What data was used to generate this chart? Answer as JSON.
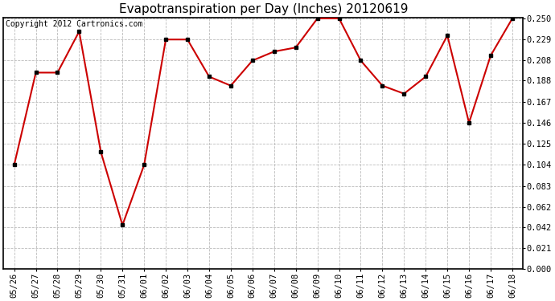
{
  "title": "Evapotranspiration per Day (Inches) 20120619",
  "copyright": "Copyright 2012 Cartronics.com",
  "x_labels": [
    "05/26",
    "05/27",
    "05/28",
    "05/29",
    "05/30",
    "05/31",
    "06/01",
    "06/02",
    "06/03",
    "06/04",
    "06/05",
    "06/06",
    "06/07",
    "06/08",
    "06/09",
    "06/10",
    "06/11",
    "06/12",
    "06/13",
    "06/14",
    "06/15",
    "06/16",
    "06/17",
    "06/18"
  ],
  "y_values": [
    0.104,
    0.196,
    0.196,
    0.237,
    0.117,
    0.044,
    0.104,
    0.229,
    0.229,
    0.192,
    0.183,
    0.208,
    0.217,
    0.221,
    0.25,
    0.25,
    0.208,
    0.183,
    0.175,
    0.192,
    0.233,
    0.146,
    0.213,
    0.25
  ],
  "line_color": "#cc0000",
  "marker": "s",
  "marker_size": 3,
  "marker_color": "#000000",
  "background_color": "#ffffff",
  "grid_color": "#bbbbbb",
  "y_min": 0.0,
  "y_max": 0.25,
  "y_ticks": [
    0.0,
    0.021,
    0.042,
    0.062,
    0.083,
    0.104,
    0.125,
    0.146,
    0.167,
    0.188,
    0.208,
    0.229,
    0.25
  ],
  "title_fontsize": 11,
  "tick_fontsize": 7.5,
  "copyright_fontsize": 7
}
